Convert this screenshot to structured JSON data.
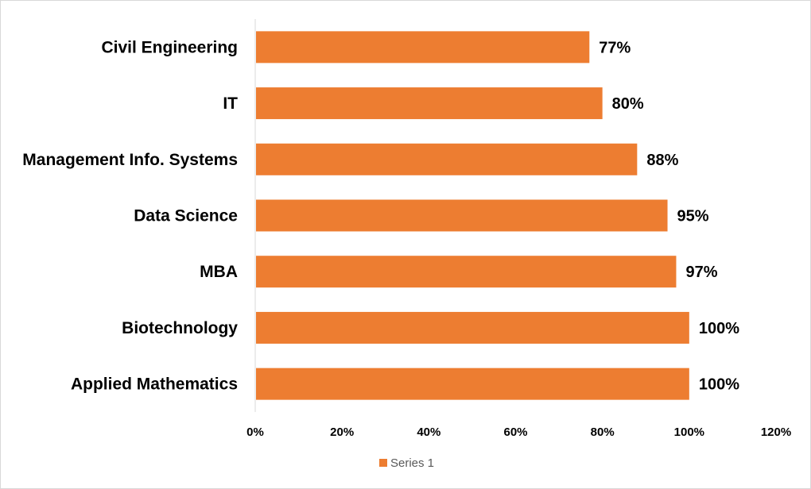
{
  "chart_data": {
    "type": "bar",
    "orientation": "horizontal",
    "title": "",
    "xlabel": "",
    "ylabel": "",
    "categories": [
      "Civil Engineering",
      "IT",
      "Management Info. Systems",
      "Data Science",
      "MBA",
      "Biotechnology",
      "Applied Mathematics"
    ],
    "series": [
      {
        "name": "Series 1",
        "values": [
          0.77,
          0.8,
          0.88,
          0.95,
          0.97,
          1.0,
          1.0
        ],
        "data_labels": [
          "77%",
          "80%",
          "88%",
          "95%",
          "97%",
          "100%",
          "100%"
        ],
        "color": "#ED7D31"
      }
    ],
    "xlim": [
      0,
      1.2
    ],
    "x_ticks": [
      0,
      0.2,
      0.4,
      0.6,
      0.8,
      1.0,
      1.2
    ],
    "x_tick_labels": [
      "0%",
      "20%",
      "40%",
      "60%",
      "80%",
      "100%",
      "120%"
    ],
    "grid": false,
    "legend_position": "bottom"
  }
}
